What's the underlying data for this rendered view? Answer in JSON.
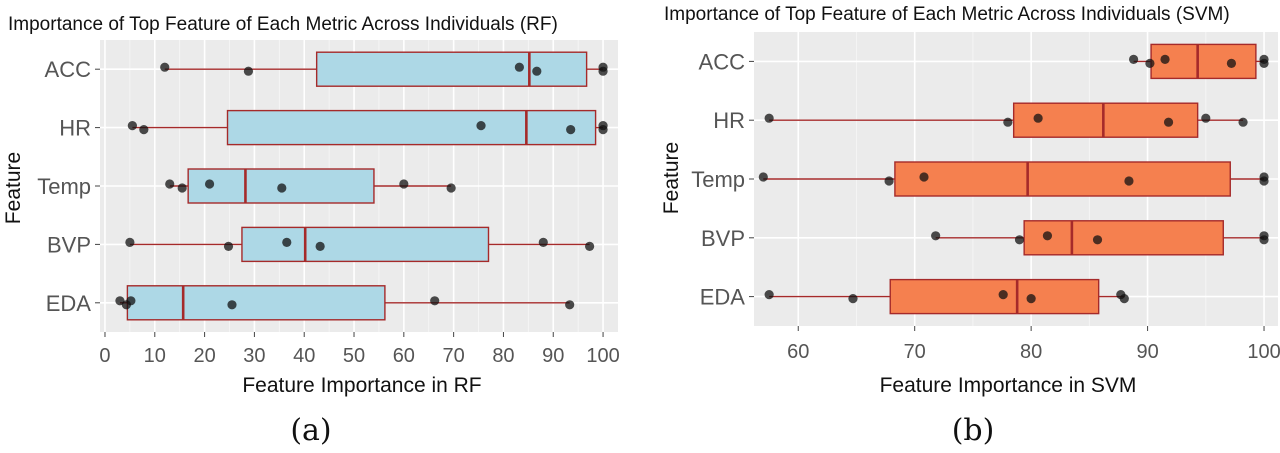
{
  "chart_data": [
    {
      "type": "box",
      "orientation": "horizontal",
      "title": "Importance of Top Feature of Each Metric Across Individuals (RF)",
      "xlabel": "Feature Importance in RF",
      "ylabel": "Feature",
      "caption": "(a)",
      "xlim": [
        -1,
        103
      ],
      "xticks": [
        0,
        10,
        20,
        30,
        40,
        50,
        60,
        70,
        80,
        90,
        100
      ],
      "grid": true,
      "colors": {
        "box_fill": "#add8e6",
        "box_stroke": "#a52a2a",
        "panel_bg": "#ebebeb",
        "point": "#111111"
      },
      "categories": [
        "ACC",
        "HR",
        "Temp",
        "BVP",
        "EDA"
      ],
      "boxes": [
        {
          "category": "ACC",
          "whisker_low": 12,
          "q1": 42.5,
          "median": 85.2,
          "q3": 96.7,
          "whisker_high": 100,
          "points": [
            12,
            28.8,
            83.2,
            86.7,
            100,
            100
          ]
        },
        {
          "category": "HR",
          "whisker_low": 5.5,
          "q1": 24.6,
          "median": 84.6,
          "q3": 98.5,
          "whisker_high": 100,
          "points": [
            5.5,
            7.8,
            75.5,
            93.5,
            100,
            100
          ]
        },
        {
          "category": "Temp",
          "whisker_low": 13,
          "q1": 16.7,
          "median": 28.2,
          "q3": 54,
          "whisker_high": 69.5,
          "points": [
            13,
            15.5,
            21,
            35.5,
            60,
            69.5
          ]
        },
        {
          "category": "BVP",
          "whisker_low": 5,
          "q1": 27.5,
          "median": 40.2,
          "q3": 77,
          "whisker_high": 97.3,
          "points": [
            5,
            24.8,
            36.5,
            43.2,
            88,
            97.3
          ]
        },
        {
          "category": "EDA",
          "whisker_low": 3,
          "q1": 4.5,
          "median": 15.7,
          "q3": 56.2,
          "whisker_high": 93.3,
          "points": [
            3,
            4.3,
            5.2,
            25.5,
            66.2,
            93.3
          ]
        }
      ]
    },
    {
      "type": "box",
      "orientation": "horizontal",
      "title": "Importance of Top Feature of Each Metric Across Individuals (SVM)",
      "xlabel": "Feature Importance in SVM",
      "ylabel": "Feature",
      "caption": "(b)",
      "xlim": [
        56.2,
        101.2
      ],
      "xticks": [
        60,
        70,
        80,
        90,
        100
      ],
      "grid": true,
      "colors": {
        "box_fill": "#f5804f",
        "box_stroke": "#a52a2a",
        "panel_bg": "#ebebeb",
        "point": "#111111"
      },
      "categories": [
        "ACC",
        "HR",
        "Temp",
        "BVP",
        "EDA"
      ],
      "boxes": [
        {
          "category": "ACC",
          "whisker_low": 88.8,
          "q1": 90.3,
          "median": 94.3,
          "q3": 99.3,
          "whisker_high": 100,
          "points": [
            88.8,
            90.2,
            91.5,
            97.2,
            100,
            100
          ]
        },
        {
          "category": "HR",
          "whisker_low": 57.5,
          "q1": 78.5,
          "median": 86.2,
          "q3": 94.3,
          "whisker_high": 98.2,
          "points": [
            57.5,
            78,
            80.6,
            91.8,
            95,
            98.2
          ]
        },
        {
          "category": "Temp",
          "whisker_low": 57,
          "q1": 68.3,
          "median": 79.7,
          "q3": 97.1,
          "whisker_high": 100,
          "points": [
            57,
            67.8,
            70.8,
            88.4,
            100,
            100
          ]
        },
        {
          "category": "BVP",
          "whisker_low": 71.8,
          "q1": 79.4,
          "median": 83.5,
          "q3": 96.5,
          "whisker_high": 100,
          "points": [
            71.8,
            79,
            81.4,
            85.7,
            100,
            100
          ]
        },
        {
          "category": "EDA",
          "whisker_low": 57.5,
          "q1": 67.9,
          "median": 78.8,
          "q3": 85.8,
          "whisker_high": 88,
          "points": [
            57.5,
            64.7,
            77.6,
            80,
            87.7,
            88
          ]
        }
      ]
    }
  ]
}
